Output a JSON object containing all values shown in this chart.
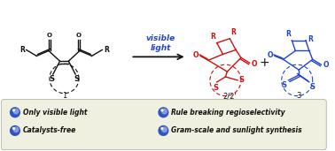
{
  "bg_color": "#f0f0e0",
  "white_bg": "#ffffff",
  "bullet_color_dark": "#3355bb",
  "bullet_color_light": "#8899dd",
  "bullet_items_col1": [
    "Only visible light",
    "Catalysts-free"
  ],
  "bullet_items_col2": [
    "Rule breaking regioselectivity",
    "Gram-scale and sunlight synthesis"
  ],
  "visible_light_text": "visible\nlight",
  "mol1_label": "1",
  "mol2_label": "2/2'",
  "mol3_label": "3",
  "red_color": "#cc1111",
  "blue_color": "#2244cc",
  "black_color": "#111111",
  "panel_edge": "#bbbbaa"
}
